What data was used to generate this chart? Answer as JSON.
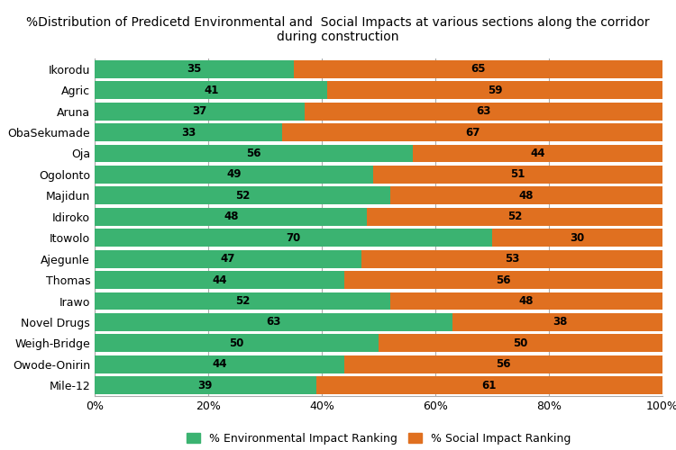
{
  "title_line1": "%Distribution of Predicetd Environmental and  Social Impacts at various sections along the corridor",
  "title_line2": "during construction",
  "categories": [
    "Ikorodu",
    "Agric",
    "Aruna",
    "ObaSekumade",
    "Oja",
    "Ogolonto",
    "Majidun",
    "Idiroko",
    "Itowolo",
    "Ajegunle",
    "Thomas",
    "Irawo",
    "Novel Drugs",
    "Weigh-Bridge",
    "Owode-Onirin",
    "Mile-12"
  ],
  "env_values": [
    35,
    41,
    37,
    33,
    56,
    49,
    52,
    48,
    70,
    47,
    44,
    52,
    63,
    50,
    44,
    39
  ],
  "social_values": [
    65,
    59,
    63,
    67,
    44,
    51,
    48,
    52,
    30,
    53,
    56,
    48,
    38,
    50,
    56,
    61
  ],
  "env_color": "#3BB371",
  "social_color": "#E07020",
  "env_label": "% Environmental Impact Ranking",
  "social_label": "% Social Impact Ranking",
  "bar_height": 0.85,
  "xlim": [
    0,
    100
  ],
  "xtick_labels": [
    "0%",
    "20%",
    "40%",
    "60%",
    "80%",
    "100%"
  ],
  "xtick_values": [
    0,
    20,
    40,
    60,
    80,
    100
  ],
  "background_color": "#ffffff",
  "grid_color": "#aaaaaa",
  "bar_label_fontsize": 8.5,
  "axis_label_fontsize": 9,
  "title_fontsize": 10,
  "legend_fontsize": 9
}
